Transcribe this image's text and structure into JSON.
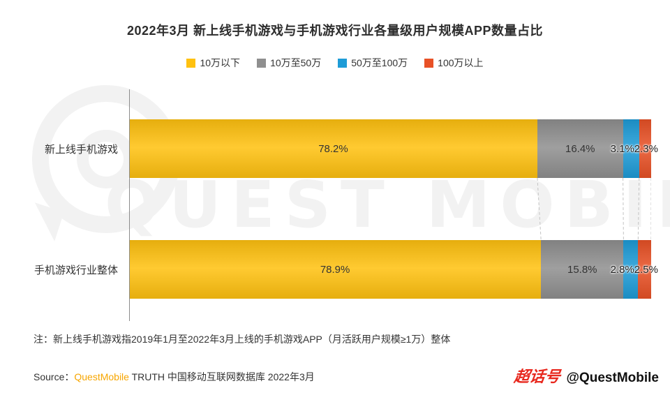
{
  "title": "2022年3月 新上线手机游戏与手机游戏行业各量级用户规模APP数量占比",
  "chart_data": {
    "type": "bar",
    "orientation": "horizontal",
    "stacked": true,
    "unit": "%",
    "categories": [
      "新上线手机游戏",
      "手机游戏行业整体"
    ],
    "series": [
      {
        "name": "10万以下",
        "color": "#FFC110",
        "values": [
          78.2,
          78.9
        ]
      },
      {
        "name": "10万至50万",
        "color": "#8F8F8F",
        "values": [
          16.4,
          15.8
        ]
      },
      {
        "name": "50万至100万",
        "color": "#1E9CD7",
        "values": [
          3.1,
          2.8
        ]
      },
      {
        "name": "100万以上",
        "color": "#E85126",
        "values": [
          2.3,
          2.5
        ]
      }
    ],
    "xlim": [
      0,
      100
    ],
    "legend_position": "top",
    "grid": false
  },
  "note": "注：新上线手机游戏指2019年1月至2022年3月上线的手机游戏APP（月活跃用户规模≥1万）整体",
  "source": {
    "prefix": "Source：",
    "brand": "QuestMobile",
    "rest": " TRUTH 中国移动互联网数据库 2022年3月"
  },
  "watermark": {
    "logo_text": "QUEST MOBILE",
    "badge": "超话号",
    "handle": "@QuestMobile"
  }
}
